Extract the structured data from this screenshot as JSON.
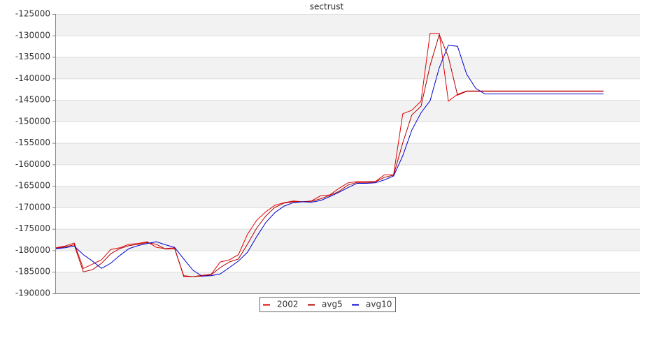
{
  "chart_data": {
    "type": "line",
    "title": "sectrust",
    "categories": [
      null,
      null,
      null,
      null,
      null,
      null,
      null,
      null,
      null,
      null,
      null,
      null,
      null,
      null,
      null,
      null,
      null,
      null,
      null,
      null,
      null,
      null,
      null,
      null,
      null,
      null,
      null,
      null,
      null,
      null,
      null,
      null,
      null,
      null,
      null,
      null,
      null,
      null,
      null,
      null,
      null,
      null,
      null,
      null,
      null,
      null,
      null,
      null,
      null,
      null,
      null,
      null,
      null,
      null,
      null,
      null,
      null,
      null,
      null,
      null,
      null,
      null,
      null,
      null,
      null
    ],
    "series": [
      {
        "name": "2002",
        "color": "#e00000",
        "values": [
          -179400,
          -179000,
          -178300,
          -184200,
          -183200,
          -182200,
          -179800,
          -179400,
          -178600,
          -178400,
          -178000,
          -179300,
          -179600,
          -179400,
          -186100,
          -186100,
          -185800,
          -185600,
          -182700,
          -182200,
          -181000,
          -176200,
          -173000,
          -171000,
          -169500,
          -168900,
          -168500,
          -168700,
          -168500,
          -167300,
          -167100,
          -165600,
          -164300,
          -164000,
          -164000,
          -164000,
          -162400,
          -162400,
          -148200,
          -147400,
          -145300,
          -129500,
          -129500,
          -145300,
          -143700,
          -142900,
          -142900,
          -142900,
          -142900,
          -142900,
          -142900,
          -142900,
          -142900,
          -142900,
          -142900,
          -142900,
          -142900,
          -142900,
          -142900,
          -142900,
          -142900,
          null,
          null,
          null,
          null
        ]
      },
      {
        "name": "avg5",
        "color": "#b00000",
        "values": [
          -179500,
          -179200,
          -178700,
          -185000,
          -184500,
          -183000,
          -180800,
          -179600,
          -178900,
          -178600,
          -178200,
          -178600,
          -179700,
          -179600,
          -185900,
          -186100,
          -186000,
          -185700,
          -184000,
          -182700,
          -182000,
          -178500,
          -174800,
          -172000,
          -170000,
          -169000,
          -168700,
          -168700,
          -168600,
          -168000,
          -167200,
          -166300,
          -164800,
          -164200,
          -164200,
          -164100,
          -163000,
          -162500,
          -155000,
          -148500,
          -146500,
          -137000,
          -129800,
          -135000,
          -143900,
          -143000,
          -143000,
          -143000,
          -143000,
          -143000,
          -143000,
          -143000,
          -143000,
          -143000,
          -143000,
          -143000,
          -143000,
          -143000,
          -143000,
          -143000,
          -143000,
          null,
          null,
          null,
          null
        ]
      },
      {
        "name": "avg10",
        "color": "#0000d0",
        "values": [
          -179600,
          -179400,
          -179000,
          -181000,
          -182500,
          -184200,
          -183000,
          -181200,
          -179600,
          -178900,
          -178400,
          -178000,
          -178700,
          -179300,
          -182000,
          -184600,
          -186000,
          -185900,
          -185500,
          -184000,
          -182500,
          -180400,
          -176800,
          -173500,
          -171200,
          -169700,
          -168900,
          -168700,
          -168800,
          -168400,
          -167500,
          -166500,
          -165400,
          -164400,
          -164400,
          -164300,
          -163600,
          -162700,
          -158000,
          -152000,
          -148000,
          -145200,
          -137500,
          -132300,
          -132500,
          -139000,
          -142300,
          -143600,
          -143600,
          -143600,
          -143600,
          -143600,
          -143600,
          -143600,
          -143600,
          -143600,
          -143600,
          -143600,
          -143600,
          -143600,
          -143600,
          null,
          null,
          null,
          null
        ]
      }
    ],
    "ylim": [
      -190000,
      -125000
    ],
    "yticks": [
      -190000,
      -185000,
      -180000,
      -175000,
      -170000,
      -165000,
      -160000,
      -155000,
      -150000,
      -145000,
      -140000,
      -135000,
      -130000,
      -125000
    ],
    "grid": true,
    "legend": "bottom"
  }
}
